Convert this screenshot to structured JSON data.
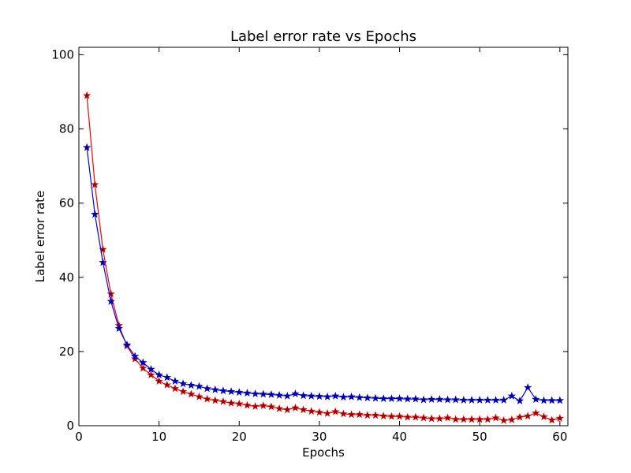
{
  "chart_data": {
    "type": "line",
    "title": "Label error rate vs Epochs",
    "xlabel": "Epochs",
    "ylabel": "Label error rate",
    "xlim": [
      0,
      61
    ],
    "ylim": [
      0,
      102
    ],
    "xticks": [
      0,
      10,
      20,
      30,
      40,
      50,
      60
    ],
    "yticks": [
      0,
      20,
      40,
      60,
      80,
      100
    ],
    "grid": false,
    "legend": "none",
    "series": [
      {
        "color": "#ff0000",
        "marker_fill": "#8b0000",
        "marker": "star",
        "x": [
          1,
          2,
          3,
          4,
          5,
          6,
          7,
          8,
          9,
          10,
          11,
          12,
          13,
          14,
          15,
          16,
          17,
          18,
          19,
          20,
          21,
          22,
          23,
          24,
          25,
          26,
          27,
          28,
          29,
          30,
          31,
          32,
          33,
          34,
          35,
          36,
          37,
          38,
          39,
          40,
          41,
          42,
          43,
          44,
          45,
          46,
          47,
          48,
          49,
          50,
          51,
          52,
          53,
          54,
          55,
          56,
          57,
          58,
          59,
          60
        ],
        "y": [
          89,
          65,
          47.5,
          35.5,
          27,
          21.5,
          18,
          15.5,
          13.7,
          12,
          11,
          10,
          9.2,
          8.5,
          7.8,
          7.2,
          6.8,
          6.5,
          6.1,
          5.9,
          5.5,
          5.2,
          5.4,
          5.1,
          4.6,
          4.3,
          4.8,
          4.3,
          3.9,
          3.6,
          3.3,
          3.8,
          3.2,
          3.0,
          3.0,
          2.8,
          2.8,
          2.6,
          2.5,
          2.5,
          2.3,
          2.3,
          2.1,
          1.9,
          1.9,
          2.1,
          1.7,
          1.7,
          1.7,
          1.7,
          1.7,
          2.1,
          1.4,
          1.6,
          2.3,
          2.6,
          3.4,
          2.4,
          1.5,
          2.0
        ]
      },
      {
        "color": "#0000ff",
        "marker_fill": "#00008b",
        "marker": "star",
        "x": [
          1,
          2,
          3,
          4,
          5,
          6,
          7,
          8,
          9,
          10,
          11,
          12,
          13,
          14,
          15,
          16,
          17,
          18,
          19,
          20,
          21,
          22,
          23,
          24,
          25,
          26,
          27,
          28,
          29,
          30,
          31,
          32,
          33,
          34,
          35,
          36,
          37,
          38,
          39,
          40,
          41,
          42,
          43,
          44,
          45,
          46,
          47,
          48,
          49,
          50,
          51,
          52,
          53,
          54,
          55,
          56,
          57,
          58,
          59,
          60
        ],
        "y": [
          75,
          57,
          44,
          33.5,
          26.2,
          21.8,
          18.7,
          17,
          15.2,
          13.7,
          13,
          12,
          11.3,
          10.9,
          10.6,
          10,
          9.7,
          9.4,
          9.2,
          9.0,
          8.8,
          8.6,
          8.5,
          8.4,
          8.2,
          8.0,
          8.6,
          8.1,
          8.0,
          7.9,
          7.8,
          8.0,
          7.7,
          7.8,
          7.6,
          7.5,
          7.4,
          7.3,
          7.3,
          7.3,
          7.2,
          7.2,
          7.0,
          7.1,
          7.1,
          7.0,
          7.0,
          6.9,
          6.9,
          6.9,
          6.9,
          6.9,
          6.9,
          8.0,
          6.7,
          10.3,
          7.1,
          6.8,
          6.8,
          6.8
        ]
      }
    ]
  }
}
